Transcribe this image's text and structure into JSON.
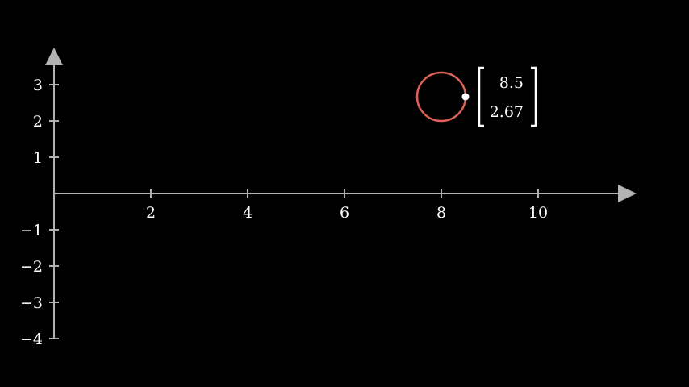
{
  "colors": {
    "background": "#000000",
    "axis": "#b3b3b3",
    "text": "#ffffff",
    "circle": "#e0605a",
    "dot": "#ffffff",
    "bracket": "#ffffff"
  },
  "axes": {
    "x_range": [
      0,
      12
    ],
    "y_range": [
      -4,
      3.5
    ],
    "x_ticks": [
      2,
      4,
      6,
      8,
      10
    ],
    "y_ticks": [
      3,
      2,
      1,
      -1,
      -2,
      -3,
      -4
    ],
    "x_tick_labels": [
      "2",
      "4",
      "6",
      "8",
      "10"
    ],
    "y_tick_labels": [
      "3",
      "2",
      "1",
      "−1",
      "−2",
      "−3",
      "−4"
    ]
  },
  "circle": {
    "center": [
      8,
      2.67
    ],
    "radius": 0.5
  },
  "point": {
    "x": 8.5,
    "y": 2.67
  },
  "matrix": {
    "entries": [
      "8.5",
      "2.67"
    ]
  }
}
